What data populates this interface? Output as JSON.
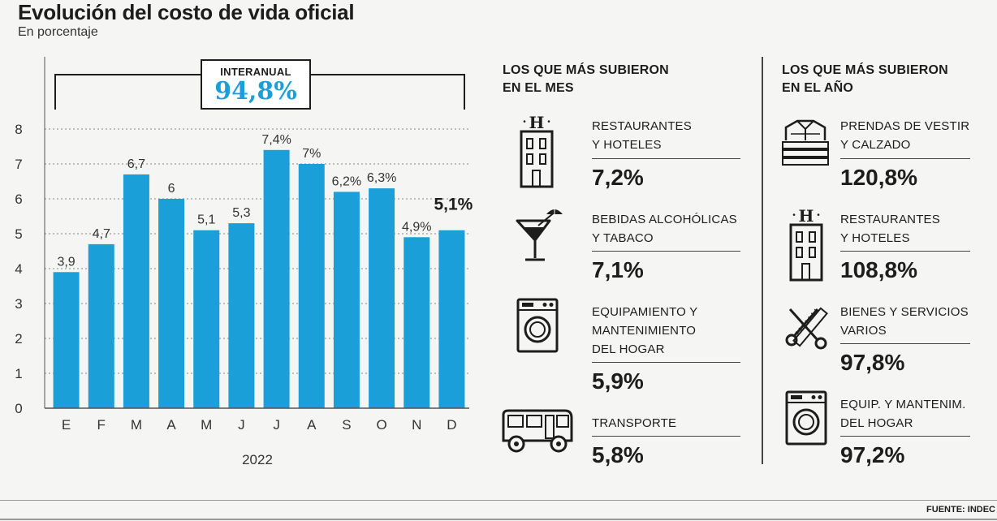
{
  "header": {
    "title": "Evolución del costo de vida oficial",
    "subtitle": "En porcentaje"
  },
  "interanual": {
    "label": "INTERANUAL",
    "value": "94,8%"
  },
  "chart_data": {
    "type": "bar",
    "categories": [
      "E",
      "F",
      "M",
      "A",
      "M",
      "J",
      "J",
      "A",
      "S",
      "O",
      "N",
      "D"
    ],
    "values": [
      3.9,
      4.7,
      6.7,
      6.0,
      5.1,
      5.3,
      7.4,
      7.0,
      6.2,
      6.3,
      4.9,
      5.1
    ],
    "data_labels": [
      "3,9",
      "4,7",
      "6,7",
      "6",
      "5,1",
      "5,3",
      "7,4%",
      "7%",
      "6,2%",
      "6,3%",
      "4,9%",
      "5,1%"
    ],
    "y_ticks": [
      "0",
      "1",
      "2",
      "3",
      "4",
      "5",
      "6",
      "7",
      "8"
    ],
    "ylim": [
      0,
      8
    ],
    "xlabel": "2022",
    "ylabel": "",
    "grid": true,
    "bar_color": "#1a9fd9"
  },
  "month_column": {
    "heading_line1": "LOS QUE MÁS SUBIERON",
    "heading_line2": "EN EL MES",
    "items": [
      {
        "line1": "RESTAURANTES",
        "line2": "Y HOTELES",
        "line3": "",
        "value": "7,2%",
        "icon": "hotel-icon"
      },
      {
        "line1": "BEBIDAS ALCOHÓLICAS",
        "line2": "Y TABACO",
        "line3": "",
        "value": "7,1%",
        "icon": "cocktail-icon"
      },
      {
        "line1": "EQUIPAMIENTO Y",
        "line2": "MANTENIMIENTO",
        "line3": "DEL HOGAR",
        "value": "5,9%",
        "icon": "washing-machine-icon"
      },
      {
        "line1": "TRANSPORTE",
        "line2": "",
        "line3": "",
        "value": "5,8%",
        "icon": "bus-icon"
      }
    ]
  },
  "year_column": {
    "heading_line1": "LOS QUE MÁS SUBIERON",
    "heading_line2": "EN EL AÑO",
    "items": [
      {
        "line1": "PRENDAS DE VESTIR",
        "line2": "Y CALZADO",
        "value": "120,8%",
        "icon": "folded-clothes-icon"
      },
      {
        "line1": "RESTAURANTES",
        "line2": "Y HOTELES",
        "value": "108,8%",
        "icon": "hotel-icon"
      },
      {
        "line1": "BIENES Y SERVICIOS",
        "line2": "VARIOS",
        "value": "97,8%",
        "icon": "scissors-comb-icon"
      },
      {
        "line1": "EQUIP. Y MANTENIM.",
        "line2": "DEL HOGAR",
        "value": "97,2%",
        "icon": "washing-machine-icon"
      }
    ]
  },
  "source": "FUENTE: INDEC"
}
